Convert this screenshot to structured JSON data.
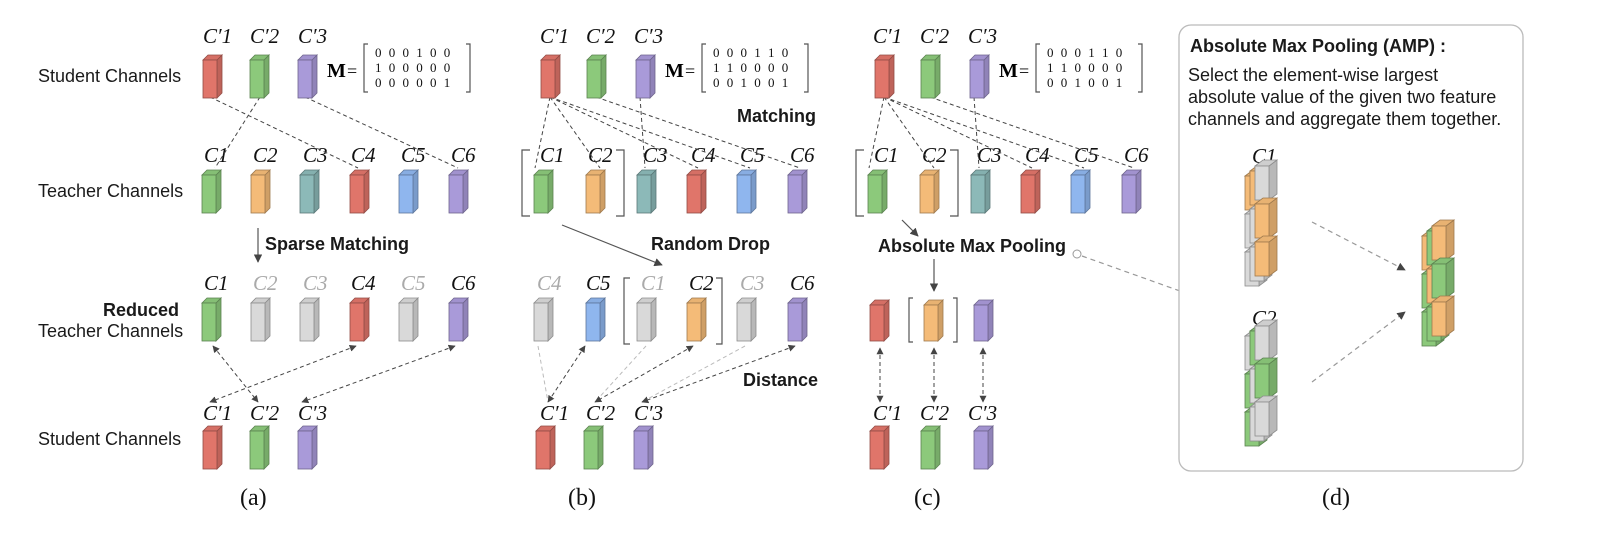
{
  "colors": {
    "red": "#e0756a",
    "green": "#8cc97b",
    "purple": "#a99ad9",
    "orange": "#f4bb78",
    "teal": "#8cb9b8",
    "blue": "#8fb6ee",
    "gray": "#d9d9d9"
  },
  "labels": {
    "student_channels": "Student Channels",
    "teacher_channels": "Teacher Channels",
    "reduced": "Reduced",
    "reduced_teacher": "Teacher Channels",
    "sparse_matching": "Sparse Matching",
    "matching": "Matching",
    "random_drop": "Random Drop",
    "distance": "Distance",
    "absolute_max_pooling": "Absolute Max Pooling"
  },
  "channel_labels": {
    "s1": "C′1",
    "s2": "C′2",
    "s3": "C′3",
    "t1": "C1",
    "t2": "C2",
    "t3": "C3",
    "t4": "C4",
    "t5": "C5",
    "t6": "C6"
  },
  "matrix_a": {
    "symbol": "M",
    "eq": "=",
    "rows": [
      "0 0 0 1 0 0",
      "1 0 0 0 0 0",
      "0 0 0 0 0 1"
    ]
  },
  "matrix_bc": {
    "symbol": "M",
    "eq": "=",
    "rows": [
      "0 0 0 1 1 0",
      "1 1 0 0 0 0",
      "0 0 1 0 0 1"
    ]
  },
  "amp_box": {
    "title": "Absolute Max Pooling (AMP) :",
    "desc_line1": "Select the element-wise largest",
    "desc_line2": "absolute value of the given two feature",
    "desc_line3": "channels and aggregate them together.",
    "c1": "C1",
    "c2": "C2"
  },
  "captions": {
    "a": "(a)",
    "b": "(b)",
    "c": "(c)",
    "d": "(d)"
  }
}
